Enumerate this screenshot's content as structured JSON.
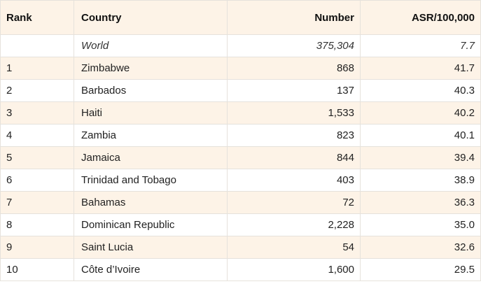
{
  "table": {
    "headers": {
      "rank": "Rank",
      "country": "Country",
      "number": "Number",
      "asr": "ASR/100,000"
    },
    "world": {
      "rank": "",
      "country": "World",
      "number": "375,304",
      "asr": "7.7"
    },
    "rows": [
      {
        "rank": "1",
        "country": "Zimbabwe",
        "number": "868",
        "asr": "41.7"
      },
      {
        "rank": "2",
        "country": "Barbados",
        "number": "137",
        "asr": "40.3"
      },
      {
        "rank": "3",
        "country": "Haiti",
        "number": "1,533",
        "asr": "40.2"
      },
      {
        "rank": "4",
        "country": "Zambia",
        "number": "823",
        "asr": "40.1"
      },
      {
        "rank": "5",
        "country": "Jamaica",
        "number": "844",
        "asr": "39.4"
      },
      {
        "rank": "6",
        "country": "Trinidad and Tobago",
        "number": "403",
        "asr": "38.9"
      },
      {
        "rank": "7",
        "country": "Bahamas",
        "number": "72",
        "asr": "36.3"
      },
      {
        "rank": "8",
        "country": "Dominican Republic",
        "number": "2,228",
        "asr": "35.0"
      },
      {
        "rank": "9",
        "country": "Saint Lucia",
        "number": "54",
        "asr": "32.6"
      },
      {
        "rank": "10",
        "country": "Côte d’Ivoire",
        "number": "1,600",
        "asr": "29.5"
      }
    ]
  },
  "colors": {
    "header_background": "#fdf3e7",
    "shaded_row_background": "#fdf3e7",
    "border": "#e6e2dc"
  }
}
